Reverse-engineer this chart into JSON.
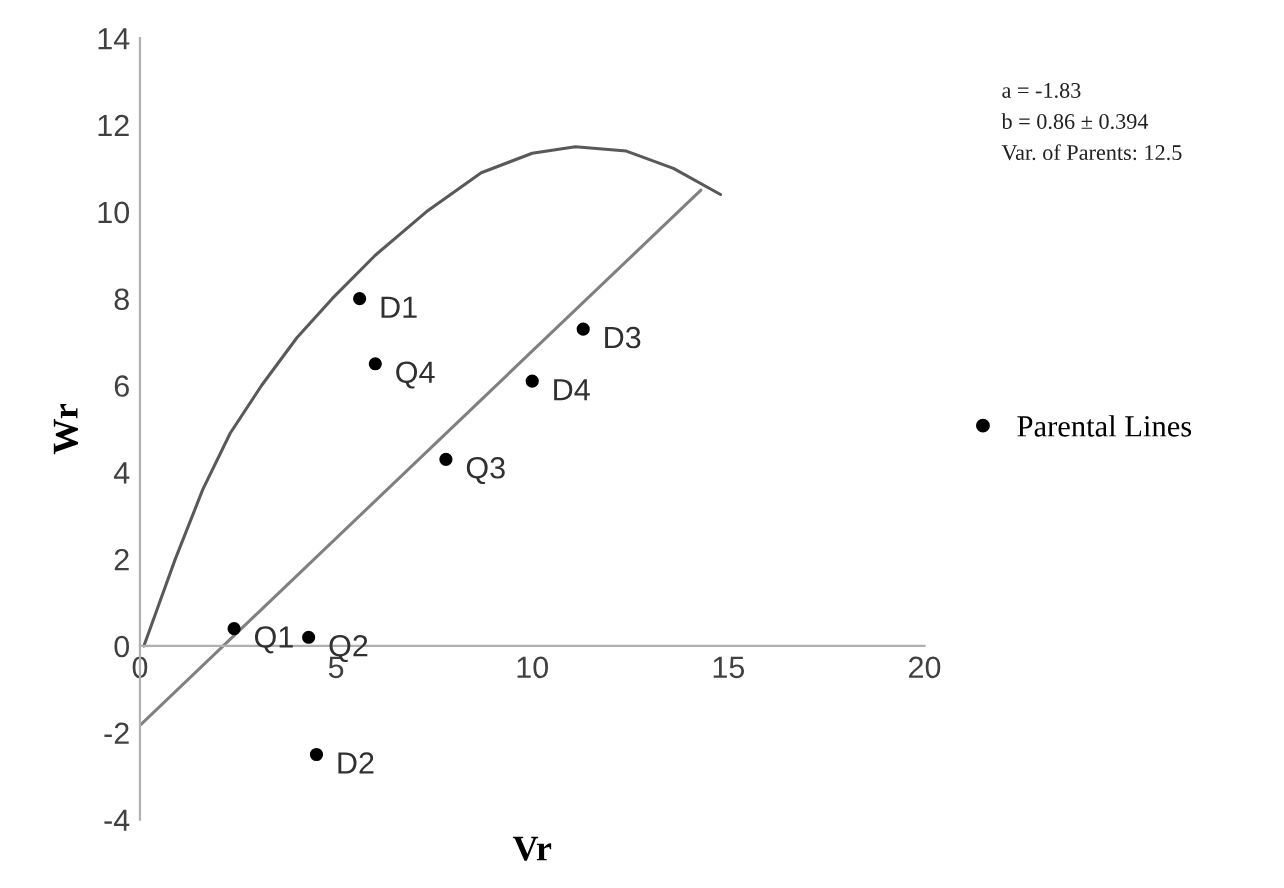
{
  "chart_data": {
    "type": "scatter",
    "xlabel": "Vr",
    "ylabel": "Wr",
    "xlim": [
      0,
      20
    ],
    "ylim": [
      -4,
      14
    ],
    "xticks": [
      0,
      5,
      10,
      15,
      20
    ],
    "yticks": [
      -4,
      -2,
      0,
      2,
      4,
      6,
      8,
      10,
      12,
      14
    ],
    "grid": false,
    "legend": "right",
    "series": [
      {
        "name": "Parental Lines",
        "marker": "circle",
        "color": "#000000",
        "x": [
          2.4,
          4.3,
          4.5,
          5.6,
          6.0,
          7.8,
          10.0,
          11.3
        ],
        "values": [
          0.4,
          0.2,
          -2.5,
          8.0,
          6.5,
          4.3,
          6.1,
          7.3
        ]
      },
      {
        "type": "line",
        "marker": "none",
        "color": "#808080",
        "x": [
          0,
          14.3
        ],
        "values": [
          -1.83,
          10.5
        ]
      },
      {
        "type": "line",
        "marker": "none",
        "color": "#595959",
        "x": [
          0.1,
          0.5,
          0.9,
          1.6,
          2.3,
          3.1,
          4.0,
          4.9,
          6.0,
          7.3,
          8.7,
          10.0,
          11.1,
          12.4,
          13.6,
          14.8
        ],
        "values": [
          0,
          1.0,
          2.0,
          3.6,
          4.9,
          6.0,
          7.1,
          8.0,
          9.0,
          10.0,
          10.9,
          11.35,
          11.5,
          11.4,
          11.0,
          10.4
        ]
      }
    ],
    "annotations": [
      {
        "text": "Q1",
        "x": 2.4,
        "y": 0.4
      },
      {
        "text": "Q2",
        "x": 4.3,
        "y": 0.2
      },
      {
        "text": "D2",
        "x": 4.5,
        "y": -2.5
      },
      {
        "text": "D1",
        "x": 5.6,
        "y": 8.0
      },
      {
        "text": "Q4",
        "x": 6.0,
        "y": 6.5
      },
      {
        "text": "Q3",
        "x": 7.8,
        "y": 4.3
      },
      {
        "text": "D4",
        "x": 10.0,
        "y": 6.1
      },
      {
        "text": "D3",
        "x": 11.3,
        "y": 7.3
      },
      "a = -1.83",
      "b = 0.86 ± 0.394",
      "Var. of Parents: 12.5"
    ]
  }
}
